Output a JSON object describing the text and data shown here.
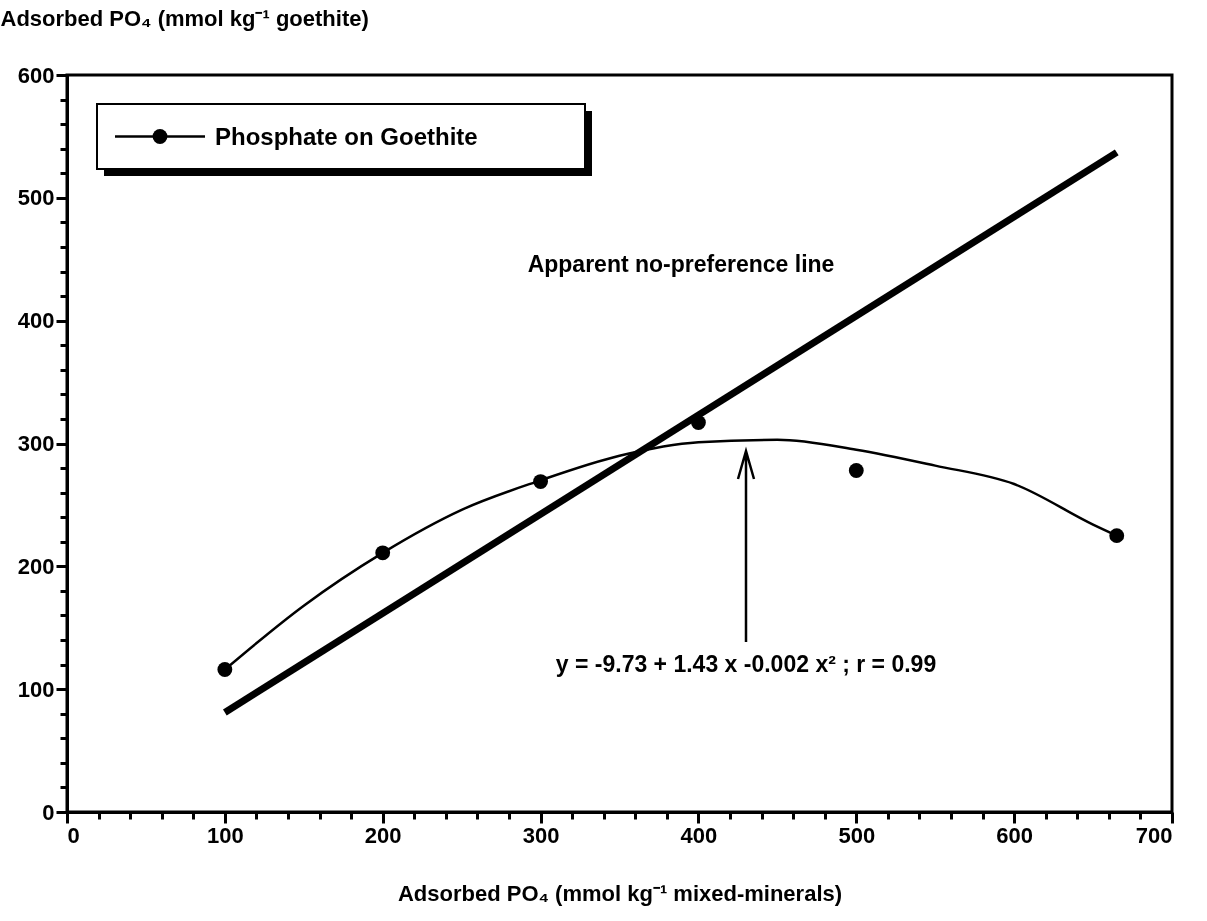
{
  "chart_data": {
    "type": "scatter",
    "xlabel": "Adsorbed PO₄ (mmol kg⁻¹ mixed-minerals)",
    "ylabel": "Adsorbed PO₄ (mmol kg⁻¹ goethite)",
    "xlim": [
      0,
      700
    ],
    "ylim": [
      0,
      600
    ],
    "xticks": [
      0,
      {
        "value": 20,
        "label": null
      },
      {
        "value": 40,
        "label": null
      },
      {
        "value": 60,
        "label": null
      },
      {
        "value": 80,
        "label": null
      },
      100,
      {
        "value": 120,
        "label": null
      },
      {
        "value": 140,
        "label": null
      },
      {
        "value": 160,
        "label": null
      },
      {
        "value": 180,
        "label": null
      },
      200,
      {
        "value": 220,
        "label": null
      },
      {
        "value": 240,
        "label": null
      },
      {
        "value": 260,
        "label": null
      },
      {
        "value": 280,
        "label": null
      },
      300,
      {
        "value": 320,
        "label": null
      },
      {
        "value": 340,
        "label": null
      },
      {
        "value": 360,
        "label": null
      },
      {
        "value": 380,
        "label": null
      },
      400,
      {
        "value": 420,
        "label": null
      },
      {
        "value": 440,
        "label": null
      },
      {
        "value": 460,
        "label": null
      },
      {
        "value": 480,
        "label": null
      },
      500,
      {
        "value": 520,
        "label": null
      },
      {
        "value": 540,
        "label": null
      },
      {
        "value": 560,
        "label": null
      },
      {
        "value": 580,
        "label": null
      },
      600,
      {
        "value": 620,
        "label": null
      },
      {
        "value": 640,
        "label": null
      },
      {
        "value": 660,
        "label": null
      },
      {
        "value": 680,
        "label": null
      },
      700
    ],
    "yticks": [
      0,
      {
        "value": 20,
        "label": null
      },
      {
        "value": 40,
        "label": null
      },
      {
        "value": 60,
        "label": null
      },
      {
        "value": 80,
        "label": null
      },
      100,
      {
        "value": 120,
        "label": null
      },
      {
        "value": 140,
        "label": null
      },
      {
        "value": 160,
        "label": null
      },
      {
        "value": 180,
        "label": null
      },
      200,
      {
        "value": 220,
        "label": null
      },
      {
        "value": 240,
        "label": null
      },
      {
        "value": 260,
        "label": null
      },
      {
        "value": 280,
        "label": null
      },
      300,
      {
        "value": 320,
        "label": null
      },
      {
        "value": 340,
        "label": null
      },
      {
        "value": 360,
        "label": null
      },
      {
        "value": 380,
        "label": null
      },
      400,
      {
        "value": 420,
        "label": null
      },
      {
        "value": 440,
        "label": null
      },
      {
        "value": 460,
        "label": null
      },
      {
        "value": 480,
        "label": null
      },
      500,
      {
        "value": 520,
        "label": null
      },
      {
        "value": 540,
        "label": null
      },
      {
        "value": 560,
        "label": null
      },
      {
        "value": 580,
        "label": null
      },
      600
    ],
    "grid": false,
    "legend": "top left",
    "line_style": "solid",
    "series": [
      {
        "name": "Phosphate on Goethite",
        "marker": "circle",
        "color": "#000000",
        "x": [
          100,
          200,
          300,
          400,
          500,
          665
        ],
        "values": [
          116,
          211,
          269,
          317,
          278,
          225
        ]
      },
      {
        "type": "line",
        "marker": "none",
        "color": "#000000",
        "x": [
          100,
          150,
          200,
          250,
          300,
          350,
          400,
          450,
          500,
          550,
          600,
          650,
          665
        ],
        "values": [
          116,
          168,
          211,
          246,
          270,
          290,
          301,
          303,
          295,
          282,
          267,
          234,
          225
        ]
      },
      {
        "type": "line",
        "marker": "none",
        "color": "#000000",
        "x": [
          100,
          665
        ],
        "values": [
          81,
          537
        ]
      }
    ],
    "annotations": [
      "Apparent no-preference line",
      "y = -9.73 + 1.43 x -0.002 x² ; r = 0.99"
    ]
  }
}
